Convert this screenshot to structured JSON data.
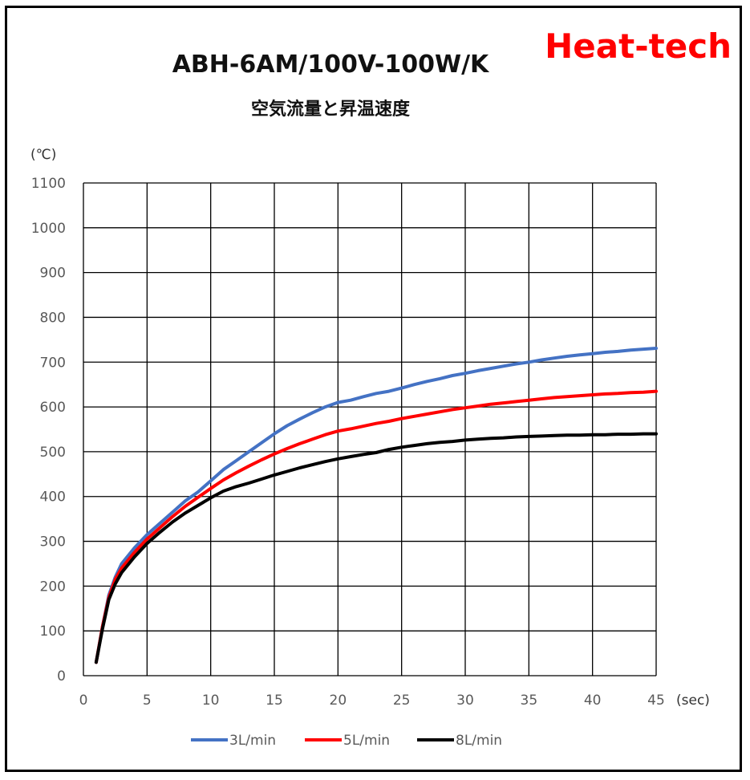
{
  "brand": {
    "text": "Heat-tech",
    "color": "#ff0000"
  },
  "chart_data": {
    "type": "line",
    "title": "ABH-6AM/100V-100W/K",
    "subtitle": "空気流量と昇温速度",
    "ylabel": "(℃)",
    "xlabel": "(sec)",
    "xlim": [
      0,
      45
    ],
    "ylim": [
      0,
      1100
    ],
    "xticks": [
      0,
      5,
      10,
      15,
      20,
      25,
      30,
      35,
      40,
      45
    ],
    "yticks": [
      0,
      100,
      200,
      300,
      400,
      500,
      600,
      700,
      800,
      900,
      1000,
      1100
    ],
    "grid": true,
    "legend_position": "bottom",
    "x": [
      1,
      1.5,
      2,
      2.5,
      3,
      4,
      5,
      6,
      7,
      8,
      9,
      10,
      11,
      12,
      13,
      14,
      15,
      16,
      17,
      18,
      19,
      20,
      21,
      22,
      23,
      24,
      25,
      26,
      27,
      28,
      29,
      30,
      31,
      32,
      33,
      34,
      35,
      36,
      37,
      38,
      39,
      40,
      41,
      42,
      43,
      44,
      45
    ],
    "series": [
      {
        "name": "3L/min",
        "color": "#4472c4",
        "values": [
          30,
          110,
          180,
          220,
          250,
          285,
          315,
          340,
          365,
          390,
          410,
          435,
          460,
          480,
          500,
          520,
          540,
          558,
          573,
          587,
          600,
          610,
          615,
          623,
          630,
          635,
          642,
          650,
          657,
          663,
          670,
          675,
          681,
          686,
          691,
          696,
          700,
          705,
          709,
          713,
          716,
          719,
          722,
          724,
          727,
          729,
          731
        ]
      },
      {
        "name": "5L/min",
        "color": "#ff0000",
        "values": [
          30,
          110,
          175,
          215,
          240,
          275,
          305,
          330,
          355,
          378,
          398,
          418,
          437,
          453,
          468,
          482,
          495,
          507,
          518,
          528,
          538,
          546,
          551,
          557,
          563,
          568,
          574,
          579,
          584,
          589,
          594,
          598,
          602,
          606,
          609,
          612,
          615,
          618,
          621,
          623,
          625,
          627,
          629,
          630,
          632,
          633,
          635
        ]
      },
      {
        "name": "8L/min",
        "color": "#000000",
        "values": [
          30,
          105,
          170,
          205,
          230,
          265,
          295,
          320,
          343,
          363,
          380,
          397,
          412,
          422,
          430,
          439,
          448,
          456,
          464,
          471,
          478,
          484,
          489,
          494,
          498,
          505,
          510,
          514,
          518,
          521,
          523,
          526,
          528,
          530,
          531,
          533,
          534,
          535,
          536,
          537,
          537,
          538,
          538,
          539,
          539,
          540,
          540
        ]
      }
    ]
  }
}
